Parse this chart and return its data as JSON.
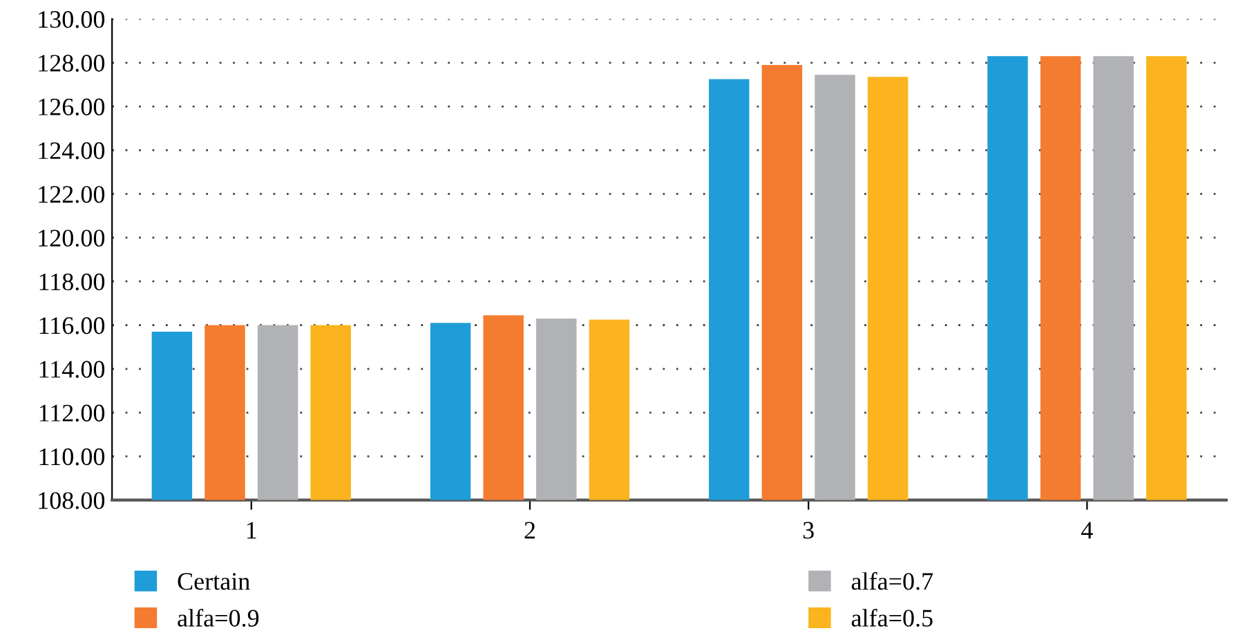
{
  "chart_data": {
    "type": "bar",
    "categories": [
      "1",
      "2",
      "3",
      "4"
    ],
    "series": [
      {
        "name": "Certain",
        "color": "#1e9dd8",
        "values": [
          115.7,
          116.1,
          127.25,
          128.3
        ]
      },
      {
        "name": "alfa=0.9",
        "color": "#f47c30",
        "values": [
          116.0,
          116.45,
          127.9,
          128.3
        ]
      },
      {
        "name": "alfa=0.7",
        "color": "#b1b2b5",
        "values": [
          116.0,
          116.3,
          127.45,
          128.3
        ]
      },
      {
        "name": "alfa=0.5",
        "color": "#fbb41d",
        "values": [
          116.0,
          116.25,
          127.35,
          128.3
        ]
      }
    ],
    "ylim": [
      108,
      130
    ],
    "yticks": [
      {
        "value": 108,
        "label": "108.00"
      },
      {
        "value": 110,
        "label": "110.00"
      },
      {
        "value": 112,
        "label": "112.00"
      },
      {
        "value": 114,
        "label": "114.00"
      },
      {
        "value": 116,
        "label": "116.00"
      },
      {
        "value": 118,
        "label": "118.00"
      },
      {
        "value": 120,
        "label": "120.00"
      },
      {
        "value": 122,
        "label": "122.00"
      },
      {
        "value": 124,
        "label": "124.00"
      },
      {
        "value": 126,
        "label": "126.00"
      },
      {
        "value": 128,
        "label": "128.00"
      },
      {
        "value": 130,
        "label": "130.00"
      }
    ],
    "grid": "y",
    "legend": "bottom"
  }
}
